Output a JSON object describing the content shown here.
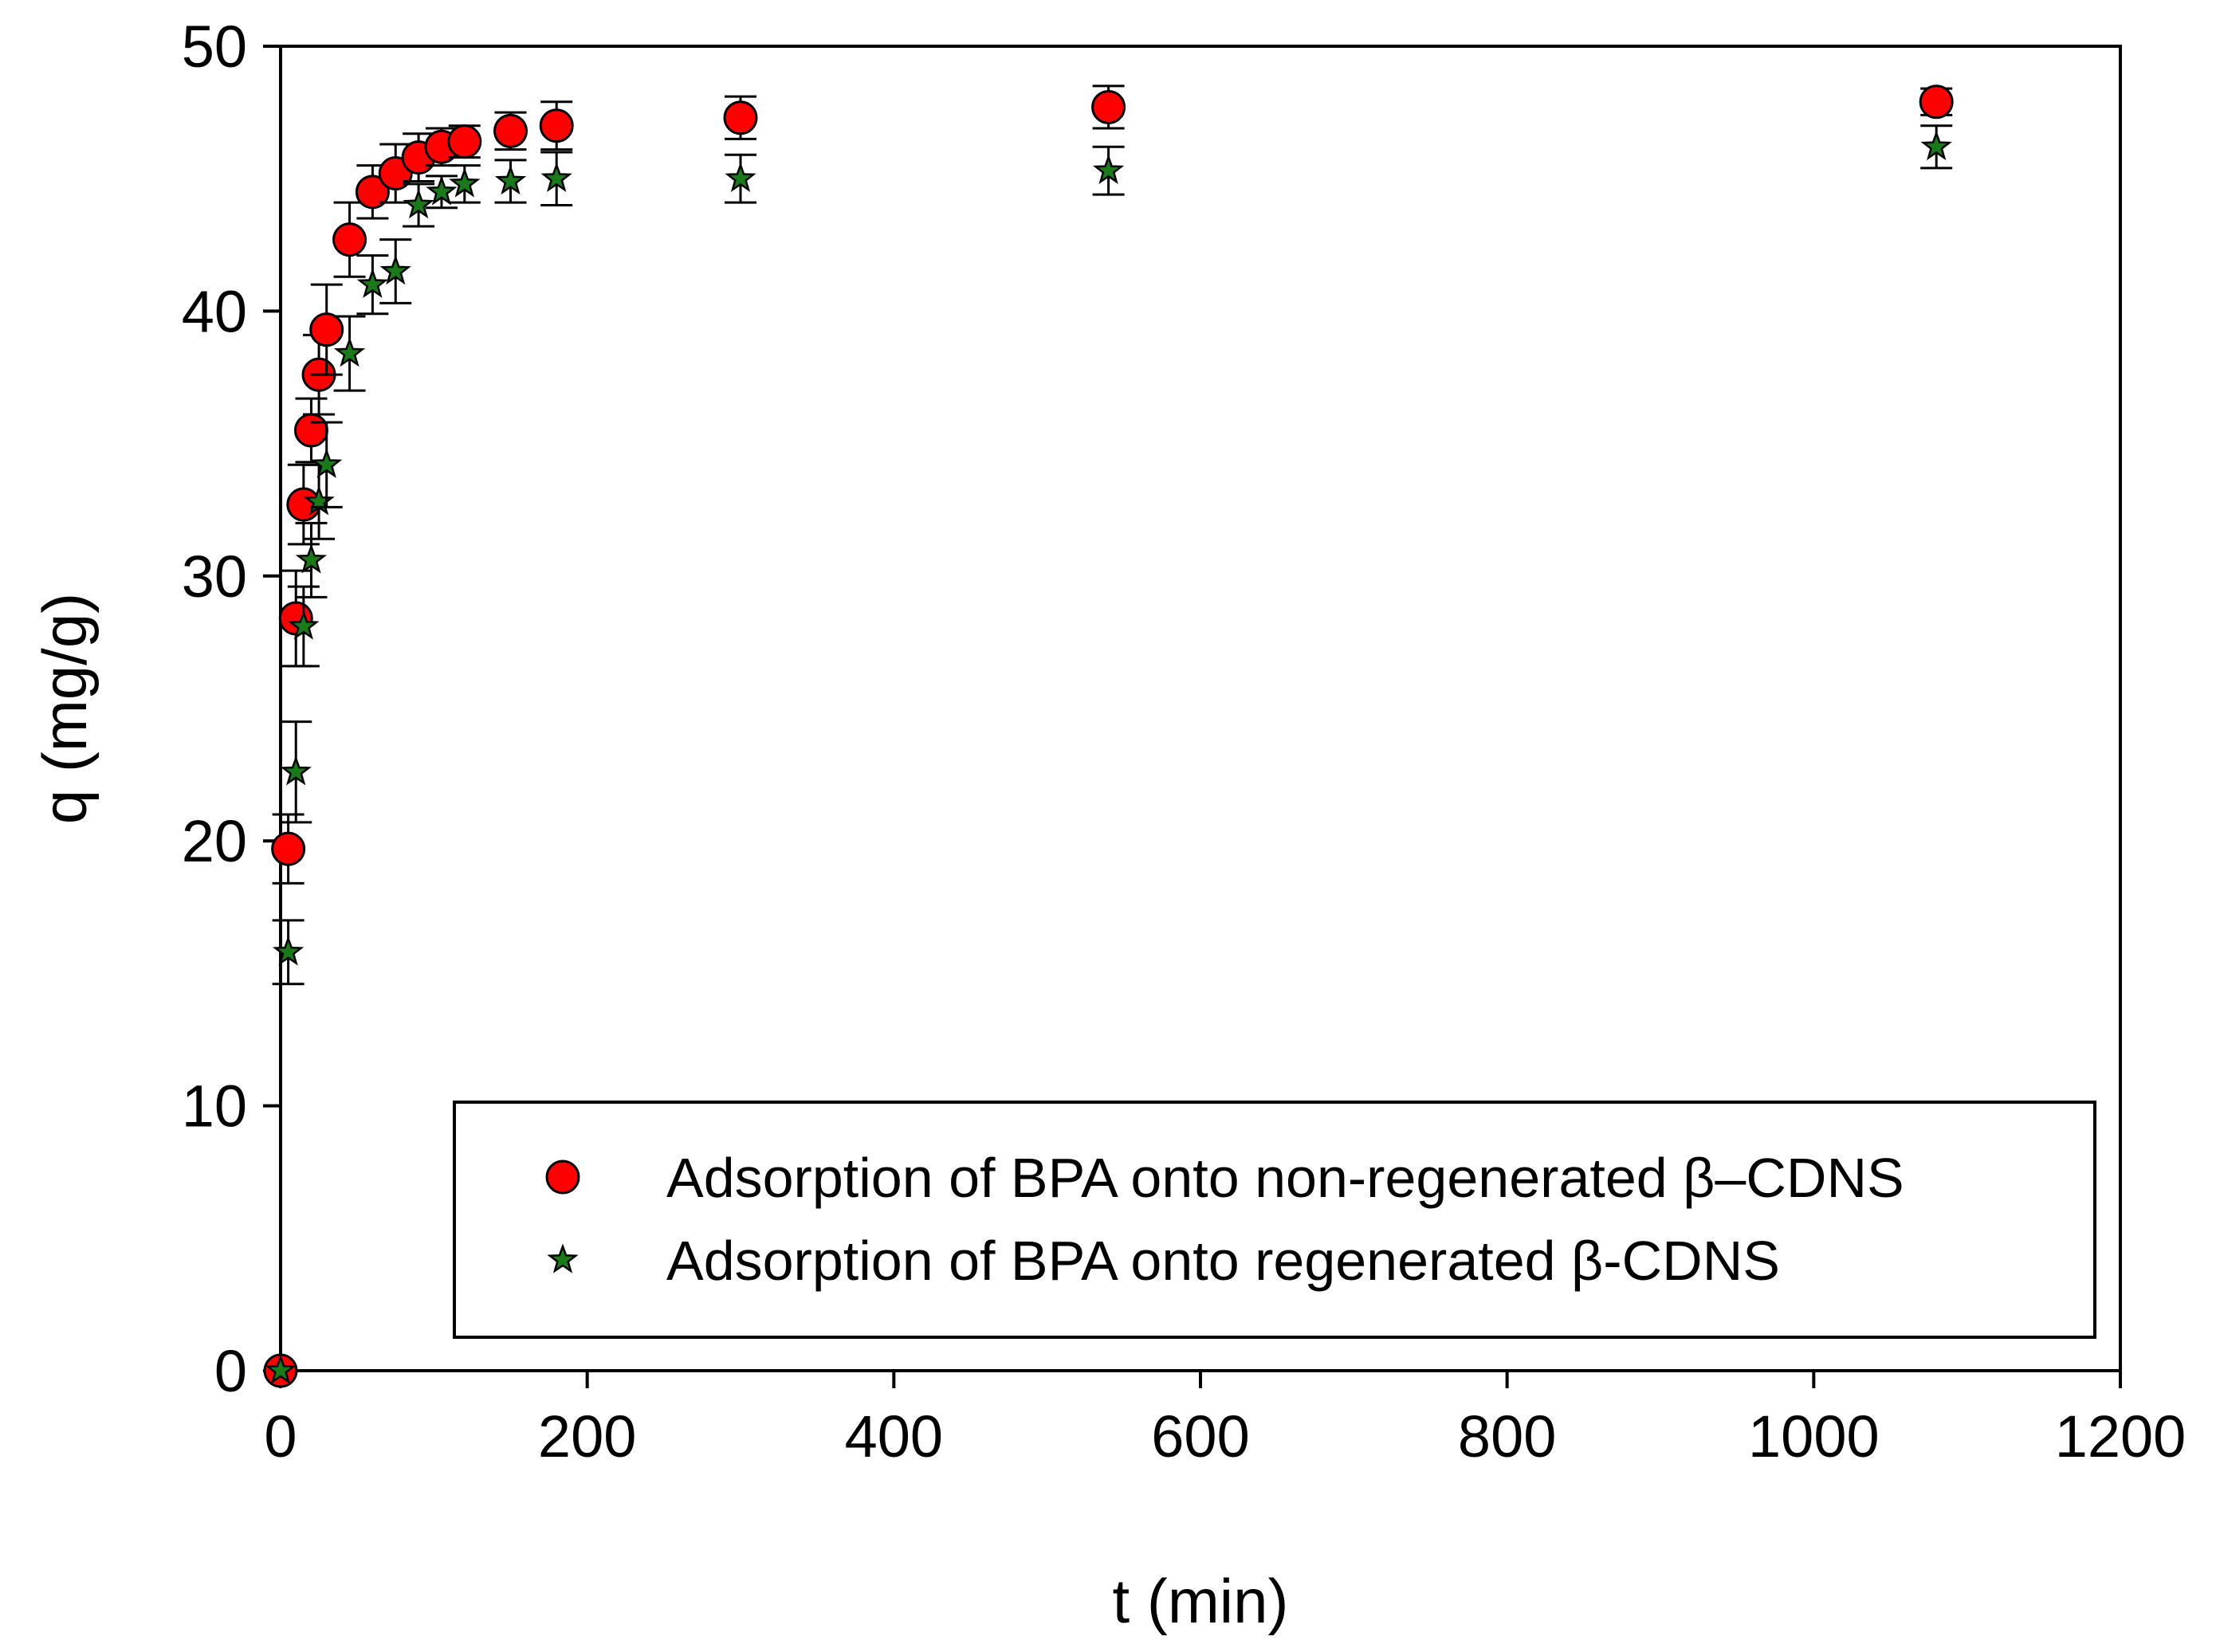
{
  "chart_data": {
    "type": "scatter",
    "title": "",
    "xlabel": "t (min)",
    "ylabel": "q (mg/g)",
    "xlim": [
      0,
      1200
    ],
    "ylim": [
      0,
      50
    ],
    "x_ticks": [
      "0",
      "200",
      "400",
      "600",
      "800",
      "1000",
      "1200"
    ],
    "y_ticks": [
      "0",
      "10",
      "20",
      "30",
      "40",
      "50"
    ],
    "legend_position": "bottom-right",
    "series": [
      {
        "name": "Adsorption of BPA onto non-regenerated β–CDNS",
        "marker": "circle",
        "color": "#ff0000",
        "x": [
          0,
          5,
          10,
          15,
          20,
          25,
          30,
          45,
          60,
          75,
          90,
          105,
          120,
          150,
          180,
          300,
          540,
          1080
        ],
        "y": [
          0,
          19.7,
          28.4,
          32.7,
          35.5,
          37.6,
          39.3,
          42.7,
          44.5,
          45.2,
          45.8,
          46.2,
          46.4,
          46.8,
          47.0,
          47.3,
          47.7,
          47.9
        ],
        "error": [
          0,
          1.3,
          1.8,
          1.5,
          1.2,
          1.5,
          1.7,
          1.4,
          1.0,
          1.1,
          0.9,
          0.7,
          0.6,
          0.7,
          0.9,
          0.8,
          0.8,
          0.5
        ]
      },
      {
        "name": "Adsorption of BPA onto regenerated β-CDNS",
        "marker": "star",
        "color": "#1a7a1a",
        "x": [
          0,
          5,
          10,
          15,
          20,
          25,
          30,
          45,
          60,
          75,
          90,
          105,
          120,
          150,
          180,
          300,
          540,
          1080
        ],
        "y": [
          0,
          15.8,
          22.6,
          28.1,
          30.6,
          32.8,
          34.2,
          38.4,
          41.0,
          41.5,
          44.0,
          44.5,
          44.8,
          44.9,
          45.0,
          45.0,
          45.3,
          46.2
        ],
        "error": [
          0,
          1.2,
          1.9,
          1.5,
          1.4,
          1.4,
          1.6,
          1.4,
          1.1,
          1.2,
          0.8,
          0.6,
          0.7,
          0.8,
          1.0,
          0.9,
          0.9,
          0.8
        ]
      }
    ]
  }
}
